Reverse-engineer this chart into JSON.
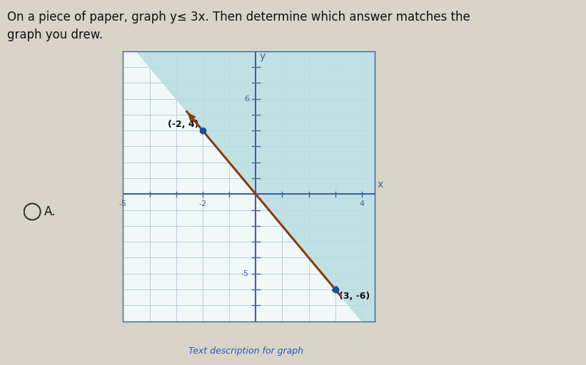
{
  "title_text": "On a piece of paper, graph y≤ 3x. Then determine which answer matches the\ngraph you drew.",
  "option_label": "A.",
  "point1": [
    -2,
    4
  ],
  "point2": [
    3,
    -6
  ],
  "point1_label": "(-2, 4)",
  "point2_label": "(3, -6)",
  "xmin": -5,
  "xmax": 4,
  "ymin": -8,
  "ymax": 8,
  "graph_bg_color": "#f0f8f8",
  "outer_bg_color": "#d8d4c8",
  "line_color": "#8B3A10",
  "point_color": "#1a4fa0",
  "shade_color": "#b8dde0",
  "axis_color": "#4060a0",
  "grid_color": "#b0c8d8",
  "title_fontsize": 12,
  "point_fontsize": 9,
  "ytick_label_6": "6",
  "ytick_label_neg5": "-5",
  "xtick_label_neg5": "-5",
  "xtick_label_neg2": "-2",
  "xtick_label_4": "4"
}
